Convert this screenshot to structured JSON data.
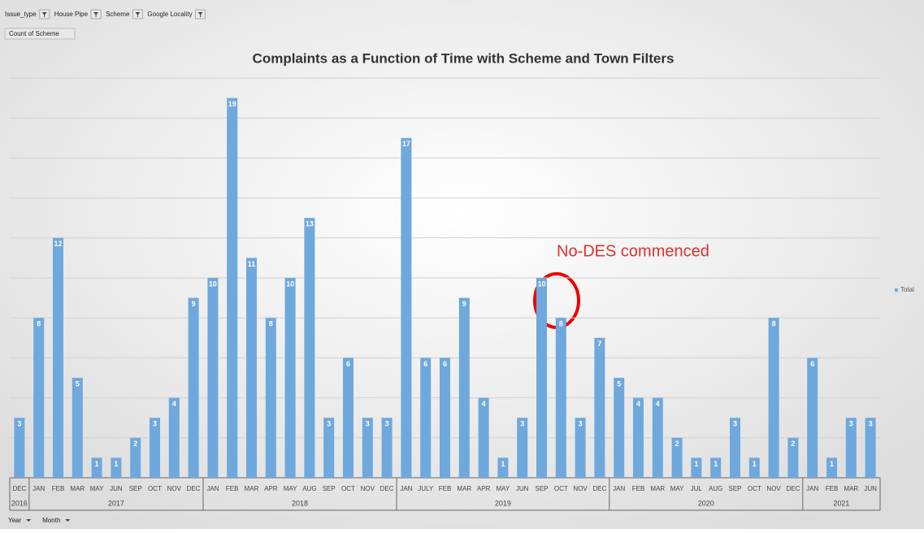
{
  "filters": [
    "Issue_type",
    "House Pipe",
    "Scheme",
    "Google Locality"
  ],
  "value_field": "Count of Scheme",
  "axis_fields": [
    "Year",
    "Month"
  ],
  "chart_data": {
    "type": "bar",
    "title": "Complaints as a Function of Time with Scheme and Town Filters",
    "annotation": "No-DES commenced",
    "categories": [
      "DEC",
      "JAN",
      "FEB",
      "MAR",
      "MAY",
      "JUN",
      "SEP",
      "OCT",
      "NOV",
      "DEC",
      "JAN",
      "FEB",
      "MAR",
      "APR",
      "MAY",
      "AUG",
      "SEP",
      "OCT",
      "NOV",
      "DEC",
      "JAN",
      "JULY",
      "FEB",
      "MAR",
      "APR",
      "MAY",
      "JUN",
      "SEP",
      "OCT",
      "NOV",
      "DEC",
      "JAN",
      "FEB",
      "MAR",
      "MAY",
      "JUL",
      "AUG",
      "SEP",
      "OCT",
      "NOV",
      "DEC",
      "JAN",
      "FEB",
      "MAR",
      "JUN"
    ],
    "years": [
      "2016",
      "2017",
      "2017",
      "2017",
      "2017",
      "2017",
      "2017",
      "2017",
      "2017",
      "2017",
      "2018",
      "2018",
      "2018",
      "2018",
      "2018",
      "2018",
      "2018",
      "2018",
      "2018",
      "2018",
      "2019",
      "2019",
      "2019",
      "2019",
      "2019",
      "2019",
      "2019",
      "2019",
      "2019",
      "2019",
      "2019",
      "2020",
      "2020",
      "2020",
      "2020",
      "2020",
      "2020",
      "2020",
      "2020",
      "2020",
      "2020",
      "2021",
      "2021",
      "2021",
      "2021"
    ],
    "series": [
      {
        "name": "Total",
        "color": "#6fa8dc",
        "values": [
          3,
          8,
          12,
          5,
          1,
          1,
          2,
          3,
          4,
          9,
          10,
          19,
          11,
          8,
          10,
          13,
          3,
          6,
          3,
          3,
          17,
          6,
          6,
          9,
          4,
          1,
          3,
          10,
          8,
          3,
          7,
          5,
          4,
          4,
          2,
          1,
          1,
          3,
          1,
          8,
          2,
          6,
          1,
          3,
          3
        ]
      }
    ],
    "ylim": [
      0,
      20
    ],
    "yticks": [
      0,
      2,
      4,
      6,
      8,
      10,
      12,
      14,
      16,
      18,
      20
    ],
    "grid": true,
    "legend": "right"
  }
}
